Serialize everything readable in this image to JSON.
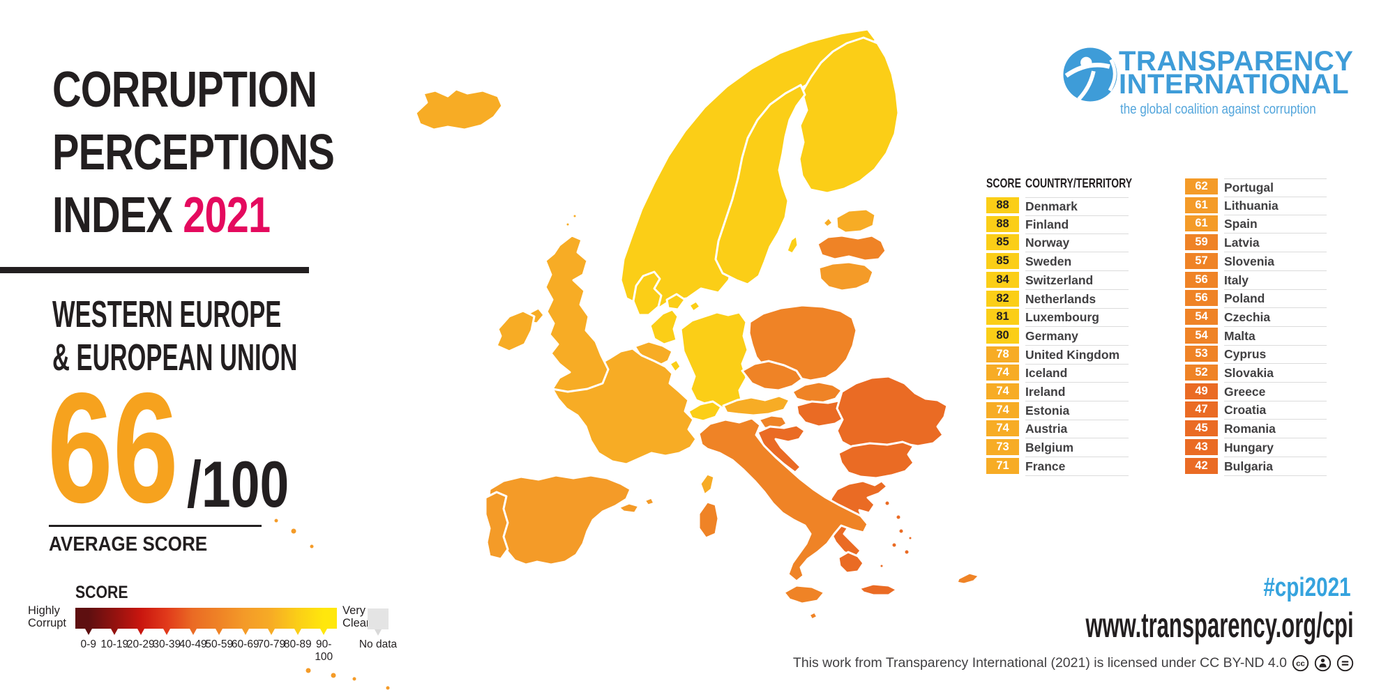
{
  "colors": {
    "pink": "#E40A5E",
    "orange": "#F6A21E",
    "dark": "#231F20",
    "blue": "#3E9CD8",
    "hashtag_blue": "#35A3DE",
    "row_line": "#DBDBDB",
    "text_gray": "#414042",
    "no_data": "#E4E4E4"
  },
  "header": {
    "title_lines": [
      "CORRUPTION",
      "PERCEPTIONS",
      "INDEX"
    ],
    "year": "2021",
    "region_lines": [
      "WESTERN EUROPE",
      "& EUROPEAN UNION"
    ],
    "average_score": "66",
    "score_denominator": "/100",
    "average_label": "AVERAGE SCORE"
  },
  "legend": {
    "title": "SCORE",
    "left_label_lines": [
      "Highly",
      "Corrupt"
    ],
    "right_label_lines": [
      "Very",
      "Clean"
    ],
    "no_data_label": "No data",
    "ranges": [
      "0-9",
      "10-19",
      "20-29",
      "30-39",
      "40-49",
      "50-59",
      "60-69",
      "70-79",
      "80-89",
      "90-100"
    ],
    "range_colors": [
      "#5E0F10",
      "#92120F",
      "#C9160F",
      "#E13A1B",
      "#EA6B24",
      "#EF8326",
      "#F49B28",
      "#F7AC25",
      "#FBCE17",
      "#FFE70C"
    ]
  },
  "logo": {
    "line1": "TRANSPARENCY",
    "line2": "INTERNATIONAL",
    "tagline": "the global coalition against corruption"
  },
  "table": {
    "score_header": "SCORE",
    "country_header": "COUNTRY/TERRITORY",
    "columns": [
      [
        {
          "score": 88,
          "country": "Denmark"
        },
        {
          "score": 88,
          "country": "Finland"
        },
        {
          "score": 85,
          "country": "Norway"
        },
        {
          "score": 85,
          "country": "Sweden"
        },
        {
          "score": 84,
          "country": "Switzerland"
        },
        {
          "score": 82,
          "country": "Netherlands"
        },
        {
          "score": 81,
          "country": "Luxembourg"
        },
        {
          "score": 80,
          "country": "Germany"
        },
        {
          "score": 78,
          "country": "United Kingdom"
        },
        {
          "score": 74,
          "country": "Iceland"
        },
        {
          "score": 74,
          "country": "Ireland"
        },
        {
          "score": 74,
          "country": "Estonia"
        },
        {
          "score": 74,
          "country": "Austria"
        },
        {
          "score": 73,
          "country": "Belgium"
        },
        {
          "score": 71,
          "country": "France"
        }
      ],
      [
        {
          "score": 62,
          "country": "Portugal"
        },
        {
          "score": 61,
          "country": "Lithuania"
        },
        {
          "score": 61,
          "country": "Spain"
        },
        {
          "score": 59,
          "country": "Latvia"
        },
        {
          "score": 57,
          "country": "Slovenia"
        },
        {
          "score": 56,
          "country": "Italy"
        },
        {
          "score": 56,
          "country": "Poland"
        },
        {
          "score": 54,
          "country": "Czechia"
        },
        {
          "score": 54,
          "country": "Malta"
        },
        {
          "score": 53,
          "country": "Cyprus"
        },
        {
          "score": 52,
          "country": "Slovakia"
        },
        {
          "score": 49,
          "country": "Greece"
        },
        {
          "score": 47,
          "country": "Croatia"
        },
        {
          "score": 45,
          "country": "Romania"
        },
        {
          "score": 43,
          "country": "Hungary"
        },
        {
          "score": 42,
          "country": "Bulgaria"
        }
      ]
    ]
  },
  "score_colors": {
    "40": "#EA6B24",
    "50": "#EF8326",
    "60": "#F49B28",
    "70": "#F7AC25",
    "80": "#FBCE17",
    "90": "#FFE70C"
  },
  "map": {
    "stroke": "#FFFFFF"
  },
  "footer": {
    "hashtag": "#cpi2021",
    "url": "www.transparency.org/cpi",
    "license": "This work from Transparency International (2021) is licensed under CC BY-ND 4.0",
    "cc_icons": [
      "cc",
      "attribution",
      "no-derivatives"
    ]
  },
  "chart_data": {
    "type": "heatmap",
    "title": "Corruption Perceptions Index 2021 - Western Europe & European Union",
    "average_score": 66,
    "scale_max": 100,
    "legend_ranges": [
      "0-9",
      "10-19",
      "20-29",
      "30-39",
      "40-49",
      "50-59",
      "60-69",
      "70-79",
      "80-89",
      "90-100",
      "No data"
    ],
    "categories": [
      "Denmark",
      "Finland",
      "Norway",
      "Sweden",
      "Switzerland",
      "Netherlands",
      "Luxembourg",
      "Germany",
      "United Kingdom",
      "Iceland",
      "Ireland",
      "Estonia",
      "Austria",
      "Belgium",
      "France",
      "Portugal",
      "Lithuania",
      "Spain",
      "Latvia",
      "Slovenia",
      "Italy",
      "Poland",
      "Czechia",
      "Malta",
      "Cyprus",
      "Slovakia",
      "Greece",
      "Croatia",
      "Romania",
      "Hungary",
      "Bulgaria"
    ],
    "values": [
      88,
      88,
      85,
      85,
      84,
      82,
      81,
      80,
      78,
      74,
      74,
      74,
      74,
      73,
      71,
      62,
      61,
      61,
      59,
      57,
      56,
      56,
      54,
      54,
      53,
      52,
      49,
      47,
      45,
      43,
      42
    ]
  }
}
